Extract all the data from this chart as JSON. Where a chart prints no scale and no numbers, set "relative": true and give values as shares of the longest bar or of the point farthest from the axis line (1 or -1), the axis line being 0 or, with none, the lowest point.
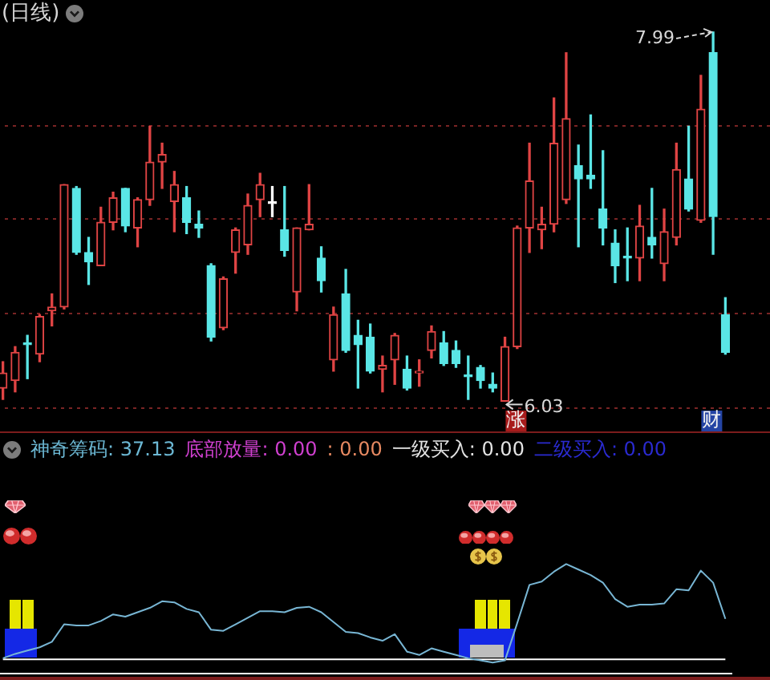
{
  "chart_data": [
    {
      "type": "candlestick",
      "title": "(日线)",
      "categories": [
        null,
        null,
        null,
        null,
        null,
        null,
        null,
        null,
        null,
        null,
        null,
        null,
        null,
        null,
        null,
        null,
        null,
        null,
        null,
        null,
        null,
        null,
        null,
        null,
        null,
        null,
        null,
        null,
        null,
        null,
        null,
        null,
        null,
        null,
        null,
        null,
        null,
        null,
        null,
        null,
        null,
        null,
        null,
        null,
        null,
        null,
        null,
        null,
        null,
        null,
        null,
        null,
        null,
        null,
        null,
        null,
        null,
        null,
        null,
        null
      ],
      "ohlc": [
        [
          6.1,
          6.24,
          6.04,
          6.18
        ],
        [
          6.14,
          6.32,
          6.08,
          6.29
        ],
        [
          6.34,
          6.38,
          6.15,
          6.33
        ],
        [
          6.28,
          6.49,
          6.24,
          6.48
        ],
        [
          6.51,
          6.6,
          6.43,
          6.53
        ],
        [
          6.53,
          7.18,
          6.52,
          7.18
        ],
        [
          7.16,
          7.17,
          6.81,
          6.82
        ],
        [
          6.82,
          6.9,
          6.65,
          6.77
        ],
        [
          6.75,
          7.06,
          6.75,
          6.98
        ],
        [
          6.98,
          7.14,
          6.94,
          7.11
        ],
        [
          7.16,
          7.16,
          6.93,
          6.96
        ],
        [
          6.95,
          7.11,
          6.85,
          7.1
        ],
        [
          7.1,
          7.49,
          7.07,
          7.3
        ],
        [
          7.3,
          7.4,
          7.16,
          7.34
        ],
        [
          7.09,
          7.25,
          6.93,
          7.18
        ],
        [
          7.11,
          7.17,
          6.92,
          6.98
        ],
        [
          6.97,
          7.04,
          6.9,
          6.95
        ],
        [
          6.75,
          6.76,
          6.35,
          6.37
        ],
        [
          6.42,
          6.69,
          6.41,
          6.68
        ],
        [
          6.82,
          6.95,
          6.71,
          6.94
        ],
        [
          6.86,
          7.13,
          6.81,
          7.07
        ],
        [
          7.1,
          7.24,
          7.01,
          7.18
        ],
        [
          7.08,
          7.17,
          7.01,
          7.08
        ],
        [
          6.94,
          7.17,
          6.8,
          6.83
        ],
        [
          6.61,
          6.95,
          6.51,
          6.95
        ],
        [
          6.94,
          7.18,
          6.94,
          6.97
        ],
        [
          6.79,
          6.85,
          6.61,
          6.67
        ],
        [
          6.25,
          6.53,
          6.19,
          6.49
        ],
        [
          6.6,
          6.73,
          6.29,
          6.3
        ],
        [
          6.38,
          6.46,
          6.1,
          6.33
        ],
        [
          6.37,
          6.44,
          6.18,
          6.19
        ],
        [
          6.2,
          6.27,
          6.08,
          6.22
        ],
        [
          6.25,
          6.39,
          6.12,
          6.38
        ],
        [
          6.2,
          6.27,
          6.09,
          6.1
        ],
        [
          6.18,
          6.25,
          6.11,
          6.19
        ],
        [
          6.3,
          6.43,
          6.26,
          6.4
        ],
        [
          6.34,
          6.4,
          6.22,
          6.23
        ],
        [
          6.3,
          6.35,
          6.21,
          6.23
        ],
        [
          6.17,
          6.27,
          6.04,
          6.16
        ],
        [
          6.21,
          6.22,
          6.1,
          6.14
        ],
        [
          6.12,
          6.18,
          6.08,
          6.1
        ],
        [
          6.03,
          6.37,
          6.03,
          6.32
        ],
        [
          6.32,
          6.96,
          6.31,
          6.95
        ],
        [
          6.95,
          7.4,
          6.82,
          7.2
        ],
        [
          6.94,
          7.06,
          6.84,
          6.97
        ],
        [
          6.97,
          7.64,
          6.93,
          7.4
        ],
        [
          7.1,
          7.88,
          7.08,
          7.53
        ],
        [
          7.28,
          7.39,
          6.85,
          7.21
        ],
        [
          7.23,
          7.55,
          7.16,
          7.21
        ],
        [
          7.05,
          7.36,
          6.86,
          6.95
        ],
        [
          6.87,
          6.94,
          6.66,
          6.75
        ],
        [
          6.8,
          6.95,
          6.67,
          6.79
        ],
        [
          6.79,
          7.07,
          6.67,
          6.96
        ],
        [
          6.9,
          7.16,
          6.79,
          6.86
        ],
        [
          6.76,
          7.05,
          6.67,
          6.93
        ],
        [
          6.9,
          7.4,
          6.86,
          7.26
        ],
        [
          7.21,
          7.49,
          7.04,
          7.05
        ],
        [
          6.99,
          7.76,
          6.98,
          7.58
        ],
        [
          7.88,
          7.99,
          6.81,
          7.01
        ],
        [
          6.49,
          6.58,
          6.28,
          6.29
        ]
      ],
      "colors": [
        "#e04444",
        "#e04444",
        "#5ae6e6",
        "#e04444",
        "#e04444",
        "#e04444",
        "#5ae6e6",
        "#5ae6e6",
        "#e04444",
        "#e04444",
        "#5ae6e6",
        "#e04444",
        "#e04444",
        "#e04444",
        "#e04444",
        "#5ae6e6",
        "#5ae6e6",
        "#5ae6e6",
        "#e04444",
        "#e04444",
        "#e04444",
        "#e04444",
        "#ffffff",
        "#5ae6e6",
        "#e04444",
        "#e04444",
        "#5ae6e6",
        "#e04444",
        "#5ae6e6",
        "#5ae6e6",
        "#5ae6e6",
        "#e04444",
        "#e04444",
        "#5ae6e6",
        "#e04444",
        "#e04444",
        "#5ae6e6",
        "#5ae6e6",
        "#5ae6e6",
        "#5ae6e6",
        "#5ae6e6",
        "#e04444",
        "#e04444",
        "#e04444",
        "#e04444",
        "#e04444",
        "#e04444",
        "#5ae6e6",
        "#5ae6e6",
        "#5ae6e6",
        "#5ae6e6",
        "#5ae6e6",
        "#e04444",
        "#5ae6e6",
        "#e04444",
        "#e04444",
        "#5ae6e6",
        "#e04444",
        "#5ae6e6",
        "#5ae6e6"
      ],
      "ylim": [
        5.87,
        8.16
      ],
      "yticks": [
        {
          "value": 6,
          "label": null
        },
        {
          "value": 6.5,
          "label": null
        },
        {
          "value": 7,
          "label": null
        },
        {
          "value": 7.5,
          "label": null
        }
      ],
      "grid": "y",
      "annotations": [
        "7.99",
        "6.03",
        "涨",
        "财"
      ]
    },
    {
      "type": "line",
      "relative": true,
      "categories": [
        null,
        null,
        null,
        null,
        null,
        null,
        null,
        null,
        null,
        null,
        null,
        null,
        null,
        null,
        null,
        null,
        null,
        null,
        null,
        null,
        null,
        null,
        null,
        null,
        null,
        null,
        null,
        null,
        null,
        null,
        null,
        null,
        null,
        null,
        null,
        null,
        null,
        null,
        null,
        null,
        null,
        null,
        null,
        null,
        null,
        null,
        null,
        null,
        null,
        null,
        null,
        null,
        null,
        null,
        null,
        null,
        null,
        null,
        null,
        null
      ],
      "series": [
        {
          "type": "line",
          "color": "#ffffff",
          "values": [
            0.13,
            0.13,
            0.13,
            0.13,
            0.13,
            0.13,
            0.13,
            0.13,
            0.13,
            0.13,
            0.13,
            0.13,
            0.13,
            0.13,
            0.13,
            0.13,
            0.13,
            0.13,
            0.13,
            0.13,
            0.13,
            0.13,
            0.13,
            0.13,
            0.13,
            0.13,
            0.13,
            0.13,
            0.13,
            0.13,
            0.13,
            0.13,
            0.13,
            0.13,
            0.13,
            0.13,
            0.13,
            0.13,
            0.13,
            0.13,
            0.13,
            0.13,
            0.13,
            0.13,
            0.13,
            0.13,
            0.13,
            0.13,
            0.13,
            0.13,
            0.13,
            0.13,
            0.13,
            0.13,
            0.13,
            0.13,
            0.13,
            0.13,
            0.13,
            0.13
          ]
        },
        {
          "type": "line",
          "color": "#78b6d4",
          "values": [
            0.14,
            0.18,
            0.21,
            0.24,
            0.29,
            0.45,
            0.44,
            0.44,
            0.48,
            0.54,
            0.52,
            0.56,
            0.6,
            0.66,
            0.65,
            0.59,
            0.56,
            0.4,
            0.39,
            0.45,
            0.51,
            0.57,
            0.57,
            0.56,
            0.6,
            0.61,
            0.56,
            0.47,
            0.38,
            0.37,
            0.33,
            0.3,
            0.36,
            0.2,
            0.17,
            0.23,
            0.2,
            0.17,
            0.14,
            0.12,
            0.1,
            0.12,
            0.46,
            0.81,
            0.84,
            0.93,
            1,
            0.95,
            0.9,
            0.83,
            0.68,
            0.61,
            0.63,
            0.63,
            0.64,
            0.77,
            0.76,
            0.94,
            0.83,
            0.5
          ]
        }
      ],
      "annotations": [
        "神奇筹码: 37.13",
        "底部放量: 0.00",
        ": 0.00",
        "一级买入: 0.00",
        "二级买入: 0.00"
      ]
    }
  ]
}
